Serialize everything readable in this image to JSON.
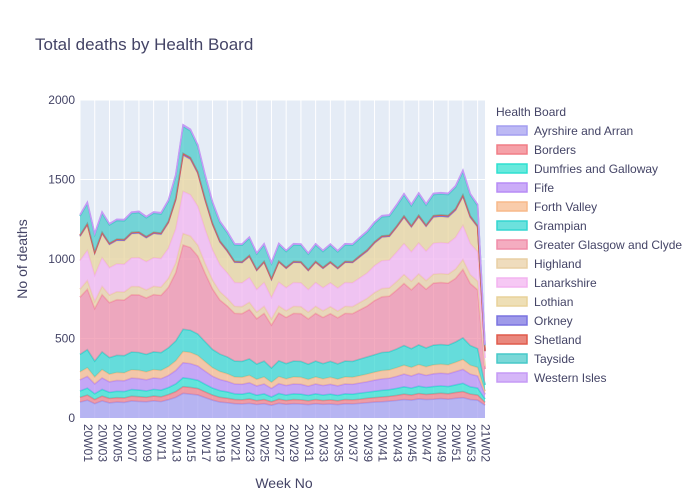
{
  "chart_data": {
    "type": "area",
    "title": "Total deaths by Health Board",
    "xlabel": "Week No",
    "ylabel": "No of deaths",
    "ylim": [
      0,
      2000
    ],
    "yticks": [
      0,
      500,
      1000,
      1500,
      2000
    ],
    "grid": true,
    "legend_title": "Health Board",
    "legend_position": "right",
    "categories": [
      "20W01",
      "20W02",
      "20W03",
      "20W04",
      "20W05",
      "20W06",
      "20W07",
      "20W08",
      "20W09",
      "20W10",
      "20W11",
      "20W12",
      "20W13",
      "20W14",
      "20W15",
      "20W16",
      "20W17",
      "20W18",
      "20W19",
      "20W20",
      "20W21",
      "20W22",
      "20W23",
      "20W24",
      "20W25",
      "20W26",
      "20W27",
      "20W28",
      "20W29",
      "20W30",
      "20W31",
      "20W32",
      "20W33",
      "20W34",
      "20W35",
      "20W36",
      "20W37",
      "20W38",
      "20W39",
      "20W40",
      "20W41",
      "20W42",
      "20W43",
      "20W44",
      "20W45",
      "20W46",
      "20W47",
      "20W48",
      "20W49",
      "20W50",
      "20W51",
      "20W52",
      "20W53",
      "21W01",
      "21W02",
      "21W03"
    ],
    "tick_labels": [
      "20W01",
      "20W03",
      "20W05",
      "20W07",
      "20W09",
      "20W11",
      "20W13",
      "20W15",
      "20W17",
      "20W19",
      "20W21",
      "20W23",
      "20W25",
      "20W27",
      "20W29",
      "20W31",
      "20W33",
      "20W35",
      "20W37",
      "20W39",
      "20W41",
      "20W43",
      "20W45",
      "20W47",
      "20W49",
      "20W51",
      "20W53",
      "21W02"
    ],
    "series": [
      {
        "name": "Ayrshire and Arran",
        "color": "#a39ef0",
        "values": [
          100,
          112,
          90,
          108,
          95,
          100,
          98,
          107,
          104,
          102,
          108,
          103,
          115,
          130,
          155,
          150,
          145,
          128,
          112,
          100,
          96,
          90,
          88,
          92,
          85,
          90,
          80,
          92,
          86,
          90,
          88,
          84,
          90,
          86,
          88,
          84,
          90,
          88,
          92,
          96,
          100,
          102,
          106,
          110,
          116,
          112,
          120,
          116,
          118,
          122,
          118,
          124,
          128,
          116,
          112,
          80
        ]
      },
      {
        "name": "Borders",
        "color": "#f17d86",
        "values": [
          30,
          32,
          26,
          30,
          28,
          28,
          28,
          30,
          30,
          28,
          30,
          30,
          32,
          36,
          42,
          42,
          40,
          36,
          32,
          30,
          28,
          26,
          26,
          28,
          24,
          26,
          22,
          26,
          24,
          26,
          26,
          24,
          26,
          24,
          26,
          24,
          26,
          26,
          26,
          28,
          28,
          30,
          30,
          32,
          34,
          32,
          34,
          32,
          34,
          34,
          34,
          36,
          38,
          34,
          32,
          18
        ]
      },
      {
        "name": "Dumfries and Galloway",
        "color": "#2ee0d0",
        "values": [
          40,
          44,
          36,
          42,
          38,
          40,
          40,
          42,
          42,
          40,
          42,
          42,
          44,
          48,
          56,
          55,
          52,
          48,
          44,
          42,
          40,
          36,
          36,
          38,
          34,
          36,
          30,
          36,
          34,
          36,
          36,
          34,
          36,
          34,
          36,
          34,
          36,
          36,
          38,
          38,
          40,
          42,
          42,
          44,
          46,
          44,
          46,
          44,
          46,
          46,
          46,
          48,
          52,
          46,
          44,
          22
        ]
      },
      {
        "name": "Fife",
        "color": "#b78cf5",
        "values": [
          70,
          74,
          62,
          72,
          66,
          68,
          68,
          72,
          72,
          70,
          72,
          72,
          76,
          85,
          95,
          95,
          90,
          82,
          74,
          70,
          66,
          62,
          62,
          64,
          58,
          62,
          54,
          62,
          60,
          62,
          62,
          58,
          62,
          60,
          62,
          60,
          62,
          62,
          64,
          66,
          70,
          72,
          72,
          76,
          80,
          76,
          80,
          76,
          80,
          80,
          80,
          84,
          88,
          80,
          76,
          28
        ]
      },
      {
        "name": "Forth Valley",
        "color": "#f7b98a",
        "values": [
          50,
          54,
          44,
          52,
          48,
          50,
          50,
          52,
          52,
          50,
          52,
          52,
          56,
          60,
          70,
          70,
          66,
          60,
          54,
          50,
          48,
          44,
          44,
          46,
          42,
          44,
          38,
          44,
          42,
          44,
          44,
          42,
          44,
          42,
          44,
          42,
          44,
          44,
          46,
          48,
          50,
          52,
          52,
          54,
          56,
          54,
          56,
          54,
          56,
          56,
          56,
          58,
          62,
          56,
          54,
          20
        ]
      },
      {
        "name": "Grampian",
        "color": "#33d6d0",
        "values": [
          110,
          114,
          100,
          112,
          105,
          108,
          108,
          112,
          112,
          110,
          112,
          112,
          118,
          125,
          140,
          140,
          135,
          125,
          115,
          110,
          106,
          100,
          100,
          104,
          96,
          100,
          90,
          100,
          96,
          100,
          100,
          96,
          100,
          96,
          100,
          96,
          100,
          100,
          104,
          108,
          110,
          114,
          114,
          118,
          124,
          118,
          124,
          118,
          124,
          124,
          124,
          128,
          136,
          124,
          118,
          40
        ]
      },
      {
        "name": "Greater Glasgow and Clyde",
        "color": "#f08ca8",
        "values": [
          360,
          380,
          330,
          360,
          345,
          350,
          350,
          360,
          362,
          355,
          360,
          360,
          380,
          430,
          530,
          520,
          490,
          430,
          380,
          340,
          320,
          300,
          300,
          310,
          285,
          300,
          270,
          300,
          290,
          300,
          300,
          285,
          300,
          290,
          300,
          290,
          300,
          300,
          310,
          320,
          340,
          350,
          350,
          370,
          390,
          370,
          390,
          370,
          390,
          390,
          390,
          400,
          430,
          390,
          370,
          100
        ]
      },
      {
        "name": "Highland",
        "color": "#e9cfa4",
        "values": [
          50,
          54,
          44,
          52,
          48,
          50,
          50,
          52,
          52,
          50,
          52,
          52,
          56,
          60,
          72,
          72,
          68,
          62,
          56,
          52,
          48,
          44,
          44,
          46,
          42,
          44,
          38,
          44,
          42,
          44,
          44,
          42,
          44,
          42,
          44,
          42,
          44,
          44,
          46,
          48,
          50,
          52,
          52,
          54,
          56,
          54,
          56,
          54,
          56,
          56,
          56,
          58,
          62,
          56,
          54,
          20
        ]
      },
      {
        "name": "Lanarkshire",
        "color": "#f3b3f0",
        "values": [
          180,
          190,
          165,
          180,
          172,
          175,
          175,
          180,
          182,
          178,
          180,
          180,
          190,
          215,
          265,
          260,
          245,
          215,
          190,
          170,
          160,
          150,
          150,
          155,
          142,
          150,
          135,
          150,
          145,
          150,
          150,
          142,
          150,
          145,
          150,
          145,
          150,
          150,
          155,
          160,
          170,
          175,
          175,
          185,
          195,
          185,
          195,
          185,
          195,
          195,
          195,
          200,
          215,
          195,
          185,
          50
        ]
      },
      {
        "name": "Lothian",
        "color": "#e8d29a",
        "values": [
          150,
          158,
          138,
          150,
          144,
          146,
          146,
          150,
          152,
          148,
          150,
          150,
          158,
          180,
          225,
          220,
          205,
          180,
          158,
          140,
          134,
          125,
          125,
          130,
          118,
          125,
          112,
          125,
          120,
          125,
          125,
          118,
          125,
          120,
          125,
          120,
          125,
          125,
          130,
          135,
          140,
          146,
          146,
          154,
          162,
          154,
          162,
          154,
          162,
          162,
          162,
          168,
          180,
          162,
          154,
          40
        ]
      },
      {
        "name": "Orkney",
        "color": "#7a73e0",
        "values": [
          5,
          6,
          4,
          5,
          5,
          5,
          5,
          5,
          5,
          5,
          5,
          5,
          6,
          6,
          7,
          7,
          6,
          6,
          5,
          5,
          5,
          4,
          4,
          5,
          4,
          4,
          4,
          4,
          4,
          4,
          4,
          4,
          4,
          4,
          4,
          4,
          4,
          4,
          5,
          5,
          5,
          5,
          5,
          5,
          6,
          5,
          6,
          5,
          6,
          6,
          6,
          6,
          6,
          6,
          5,
          2
        ]
      },
      {
        "name": "Shetland",
        "color": "#e05a4c",
        "values": [
          5,
          5,
          4,
          5,
          5,
          5,
          5,
          5,
          5,
          5,
          5,
          5,
          5,
          6,
          7,
          7,
          6,
          6,
          5,
          5,
          5,
          4,
          4,
          5,
          4,
          4,
          4,
          4,
          4,
          4,
          4,
          4,
          4,
          4,
          4,
          4,
          4,
          4,
          5,
          5,
          5,
          5,
          5,
          5,
          6,
          5,
          6,
          5,
          6,
          6,
          6,
          6,
          6,
          6,
          5,
          2
        ]
      },
      {
        "name": "Tayside",
        "color": "#47c9c9",
        "values": [
          120,
          126,
          110,
          120,
          115,
          117,
          117,
          120,
          122,
          118,
          120,
          120,
          126,
          140,
          170,
          168,
          160,
          142,
          126,
          116,
          110,
          104,
          104,
          108,
          98,
          104,
          94,
          104,
          100,
          104,
          104,
          98,
          104,
          100,
          104,
          100,
          104,
          104,
          108,
          112,
          116,
          120,
          120,
          126,
          132,
          126,
          132,
          126,
          132,
          132,
          132,
          136,
          146,
          132,
          126,
          36
        ]
      },
      {
        "name": "Western Isles",
        "color": "#c59af5",
        "values": [
          8,
          8,
          7,
          8,
          8,
          8,
          8,
          8,
          8,
          8,
          8,
          8,
          8,
          9,
          10,
          10,
          10,
          9,
          8,
          8,
          7,
          7,
          7,
          7,
          6,
          7,
          6,
          7,
          7,
          7,
          7,
          6,
          7,
          7,
          7,
          7,
          7,
          7,
          7,
          7,
          8,
          8,
          8,
          8,
          8,
          8,
          8,
          8,
          8,
          8,
          8,
          8,
          9,
          8,
          8,
          3
        ]
      }
    ]
  }
}
